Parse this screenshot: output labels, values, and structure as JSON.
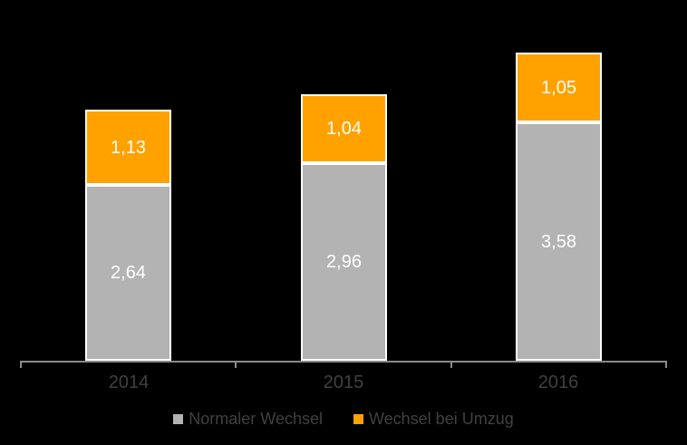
{
  "chart_data": {
    "type": "bar",
    "stacked": true,
    "title": "",
    "xlabel": "",
    "ylabel": "",
    "y_axis": "hidden",
    "grid": false,
    "legend_position": "bottom",
    "categories": [
      "2014",
      "2015",
      "2016"
    ],
    "series": [
      {
        "name": "Normaler Wechsel",
        "color": "#B3B3B3",
        "values": [
          2.64,
          2.96,
          3.58
        ],
        "labels": [
          "2,64",
          "2,96",
          "3,58"
        ]
      },
      {
        "name": "Wechsel bei Umzug",
        "color": "#FFA200",
        "values": [
          1.13,
          1.04,
          1.05
        ],
        "labels": [
          "1,13",
          "1,04",
          "1,05"
        ]
      }
    ],
    "colors": {
      "background": "#000000",
      "axis": "#8A8A8A",
      "category_label_text": "#404040",
      "legend_text": "#404040",
      "value_label_text": "#FFFFFF",
      "segment_border": "#FFFFFF"
    }
  }
}
